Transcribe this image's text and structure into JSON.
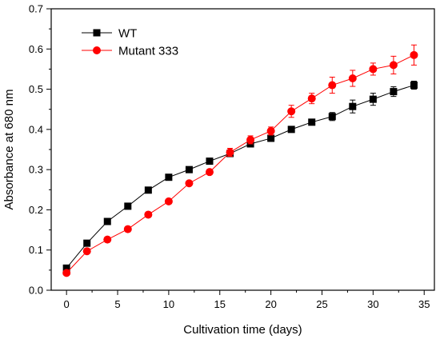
{
  "chart_data": {
    "type": "line",
    "xlabel": "Cultivation time (days)",
    "ylabel": "Absorbance at 680 nm",
    "xlim": [
      -1.5,
      36
    ],
    "ylim": [
      0,
      0.7
    ],
    "xticks": [
      0,
      5,
      10,
      15,
      20,
      25,
      30,
      35
    ],
    "yticks": [
      0.0,
      0.1,
      0.2,
      0.3,
      0.4,
      0.5,
      0.6,
      0.7
    ],
    "xtick_labels": [
      "0",
      "5",
      "10",
      "15",
      "20",
      "25",
      "30",
      "35"
    ],
    "ytick_labels": [
      "0.0",
      "0.1",
      "0.2",
      "0.3",
      "0.4",
      "0.5",
      "0.6",
      "0.7"
    ],
    "grid": false,
    "legend_position": "top-left",
    "series": [
      {
        "name": "WT",
        "color": "#000000",
        "marker": "square",
        "x": [
          0,
          2,
          4,
          6,
          8,
          10,
          12,
          14,
          16,
          18,
          20,
          22,
          24,
          26,
          28,
          30,
          32,
          34
        ],
        "y": [
          0.055,
          0.117,
          0.171,
          0.209,
          0.249,
          0.281,
          0.3,
          0.321,
          0.34,
          0.364,
          0.378,
          0.4,
          0.418,
          0.432,
          0.457,
          0.475,
          0.494,
          0.51
        ],
        "err": [
          0.004,
          0.004,
          0.004,
          0.004,
          0.004,
          0.007,
          0.004,
          0.004,
          0.005,
          0.005,
          0.008,
          0.006,
          0.006,
          0.01,
          0.016,
          0.015,
          0.012,
          0.01
        ]
      },
      {
        "name": "Mutant 333",
        "color": "#ff0000",
        "marker": "circle",
        "x": [
          0,
          2,
          4,
          6,
          8,
          10,
          12,
          14,
          16,
          18,
          20,
          22,
          24,
          26,
          28,
          30,
          32,
          34
        ],
        "y": [
          0.043,
          0.097,
          0.126,
          0.152,
          0.188,
          0.221,
          0.266,
          0.294,
          0.343,
          0.374,
          0.396,
          0.445,
          0.477,
          0.51,
          0.527,
          0.55,
          0.56,
          0.585
        ],
        "err": [
          0.004,
          0.004,
          0.004,
          0.004,
          0.004,
          0.004,
          0.004,
          0.006,
          0.01,
          0.01,
          0.01,
          0.015,
          0.013,
          0.02,
          0.02,
          0.015,
          0.022,
          0.025
        ]
      }
    ]
  }
}
